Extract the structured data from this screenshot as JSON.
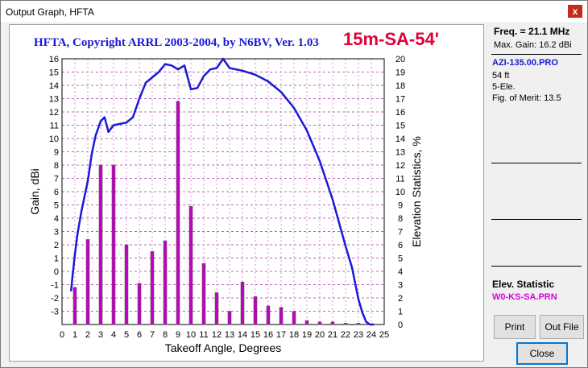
{
  "window": {
    "title": "Output Graph, HFTA",
    "close_glyph": "x"
  },
  "plot": {
    "title": "HFTA, Copyright ARRL 2003-2004, by N6BV, Ver. 1.03",
    "tag": "15m-SA-54'"
  },
  "side": {
    "freq": "Freq. = 21.1 MHz",
    "max_gain": "Max. Gain: 16.2 dBi",
    "antenna_file": "AZI-135.00.PRO",
    "height": "54 ft",
    "elements": "5-Ele.",
    "merit": "Fig. of Merit:  13.5",
    "elev_title": "Elev. Statistic",
    "elev_file": "W0-KS-SA.PRN"
  },
  "buttons": {
    "print": "Print",
    "out_file": "Out File",
    "close": "Close"
  },
  "chart_data": {
    "type": "line",
    "xlabel": "Takeoff Angle, Degrees",
    "ylabel": "Gain, dBi",
    "y2label": "Elevation Statistics, %",
    "xlim": [
      0,
      25
    ],
    "ylim": [
      -4,
      16
    ],
    "y2lim": [
      0,
      20
    ],
    "x_ticks": [
      "0",
      "1",
      "2",
      "3",
      "4",
      "5",
      "6",
      "7",
      "8",
      "9",
      "10",
      "11",
      "12",
      "13",
      "14",
      "15",
      "16",
      "17",
      "18",
      "19",
      "20",
      "21",
      "22",
      "23",
      "24",
      "25"
    ],
    "y_ticks": [
      "-3",
      "-2",
      "-1",
      "0",
      "1",
      "2",
      "3",
      "4",
      "5",
      "6",
      "7",
      "8",
      "9",
      "10",
      "11",
      "12",
      "13",
      "14",
      "15",
      "16"
    ],
    "y2_ticks": [
      "0",
      "1",
      "2",
      "3",
      "4",
      "5",
      "6",
      "7",
      "8",
      "9",
      "10",
      "11",
      "12",
      "13",
      "14",
      "15",
      "16",
      "17",
      "18",
      "19",
      "20"
    ],
    "grid": true,
    "gain_color": "#1a1ad8",
    "bar_color": "#c000c0",
    "series": [
      {
        "x": [
          0.7,
          0.8,
          1.0,
          1.2,
          1.5,
          2.0,
          2.3,
          2.6,
          3.0,
          3.3,
          3.6,
          4.0,
          4.5,
          5.0,
          5.5,
          6.0,
          6.5,
          7.0,
          7.5,
          8.0,
          8.5,
          9.0,
          9.5,
          10.0,
          10.5,
          11.0,
          11.5,
          12.0,
          12.5,
          13.0,
          14.0,
          15.0,
          16.0,
          17.0,
          18.0,
          19.0,
          20.0,
          21.0,
          22.0,
          22.5,
          23.0,
          23.3,
          23.6,
          23.9,
          24.1,
          24.2
        ],
        "values": [
          2.5,
          3.5,
          5.3,
          6.8,
          8.5,
          10.8,
          12.8,
          14.2,
          15.3,
          15.6,
          14.5,
          15.0,
          15.1,
          15.2,
          15.6,
          17.0,
          18.2,
          18.6,
          19.0,
          19.6,
          19.5,
          19.2,
          19.5,
          17.7,
          17.8,
          18.7,
          19.2,
          19.3,
          20.0,
          19.3,
          19.1,
          18.8,
          18.3,
          17.5,
          16.3,
          14.6,
          12.3,
          9.4,
          5.9,
          4.3,
          1.9,
          0.9,
          0.2,
          0.0,
          0.0,
          0.0
        ],
        "axis": "right"
      },
      {
        "x": [
          1,
          2,
          3,
          4,
          5,
          6,
          7,
          8,
          9,
          10,
          11,
          12,
          13,
          14,
          15,
          16,
          17,
          18,
          19,
          20,
          21,
          22,
          23,
          24
        ],
        "values": [
          2.8,
          6.4,
          12.0,
          12.0,
          6.0,
          3.1,
          5.5,
          6.3,
          16.8,
          8.9,
          4.6,
          2.4,
          1.0,
          3.2,
          2.1,
          1.4,
          1.3,
          1.0,
          0.3,
          0.2,
          0.2,
          0.1,
          0.1,
          0.05
        ],
        "axis": "right"
      }
    ]
  }
}
